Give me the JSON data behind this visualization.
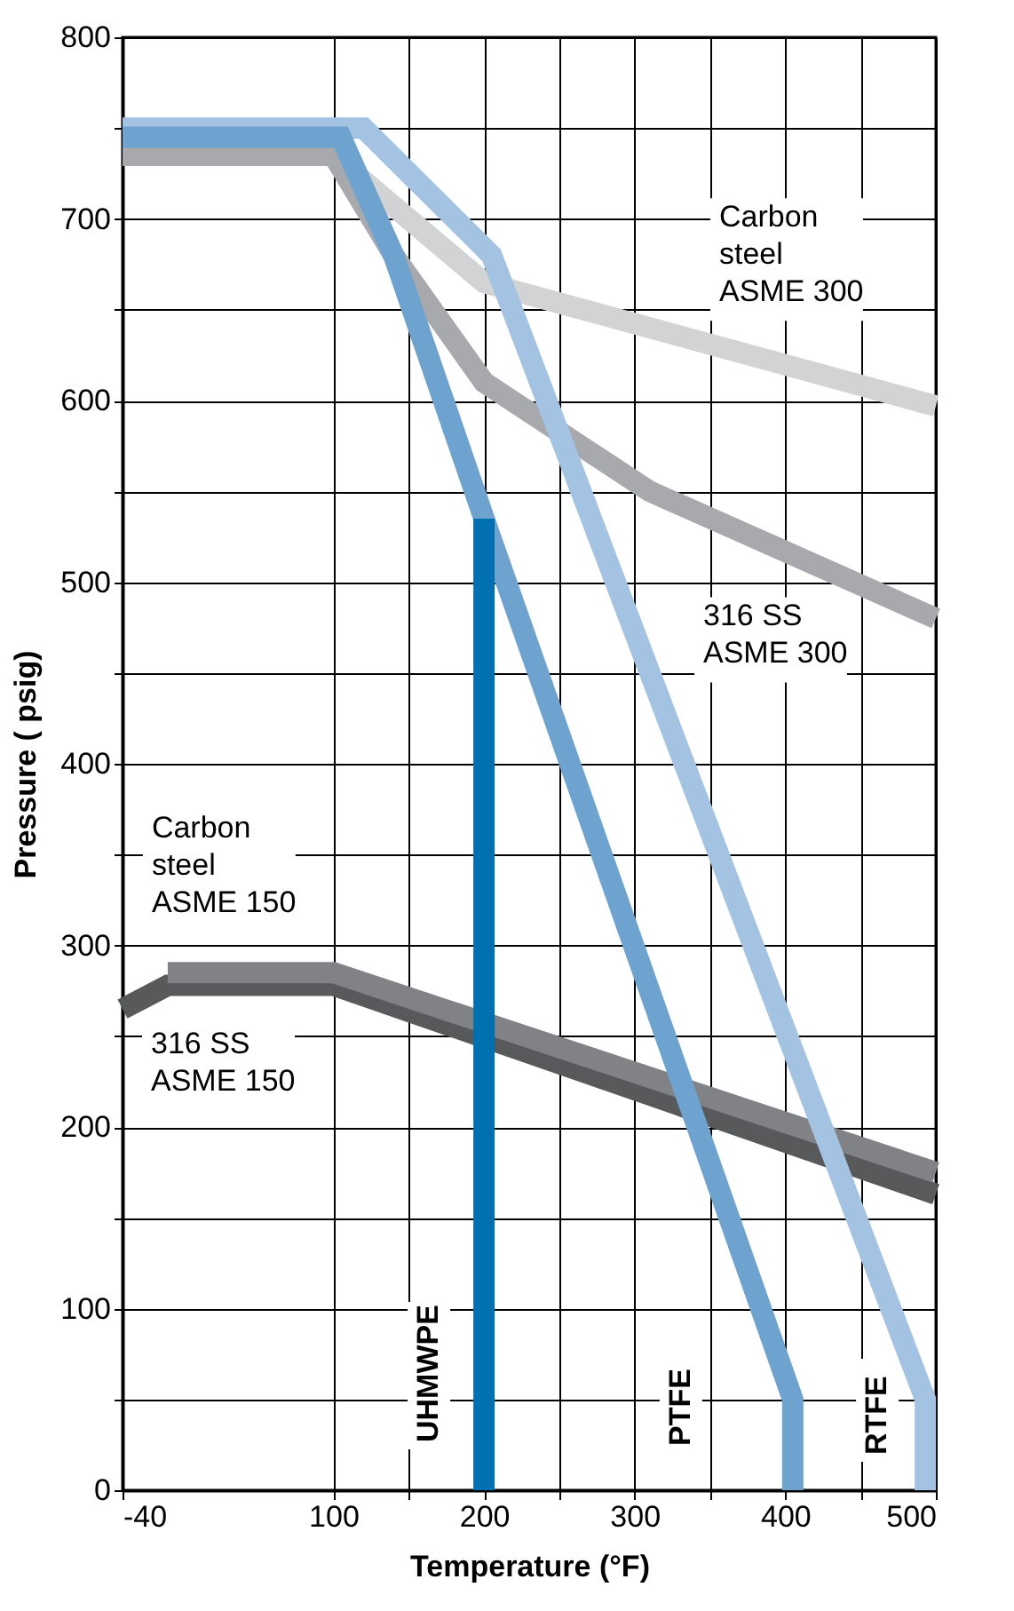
{
  "chart_data": {
    "type": "line",
    "xlabel": "Temperature (°F)",
    "ylabel": "Pressure ( psig)",
    "xlim": [
      -40,
      500
    ],
    "ylim": [
      0,
      800
    ],
    "xticks": [
      -40,
      100,
      {
        "value": 150,
        "label": null
      },
      200,
      {
        "value": 250,
        "label": null
      },
      300,
      {
        "value": 350,
        "label": null
      },
      400,
      {
        "value": 450,
        "label": null
      },
      500
    ],
    "yticks": [
      0,
      {
        "value": 50,
        "label": null
      },
      100,
      {
        "value": 150,
        "label": null
      },
      200,
      {
        "value": 250,
        "label": null
      },
      300,
      {
        "value": 350,
        "label": null
      },
      400,
      {
        "value": 450,
        "label": null
      },
      500,
      {
        "value": 550,
        "label": null
      },
      600,
      {
        "value": 650,
        "label": null
      },
      700,
      {
        "value": 750,
        "label": null
      },
      800
    ],
    "grid": true,
    "legend": false,
    "marker": "none",
    "line_style": "solid",
    "series": [
      {
        "name": "Carbon\nsteel\nASME 300",
        "color": "#d1d3d4",
        "x": [
          100,
          200,
          500
        ],
        "values": [
          735,
          665,
          597
        ]
      },
      {
        "name": "316 SS\nASME 300",
        "color": "#a7a9ac",
        "x": [
          -40,
          100,
          140,
          200,
          310,
          500
        ],
        "values": [
          735,
          735,
          680,
          610,
          550,
          480
        ]
      },
      {
        "name": "316 SS\nASME 150",
        "color": "#58595b",
        "x": [
          -40,
          -10,
          100,
          500
        ],
        "values": [
          265,
          278,
          278,
          163
        ]
      },
      {
        "name": "Carbon\nsteel\nASME 150",
        "color": "#808285",
        "x": [
          -10,
          100,
          500
        ],
        "values": [
          285,
          285,
          175
        ]
      },
      {
        "name": "RTFE",
        "color": "#a4c2e1",
        "x": [
          -40,
          120,
          205,
          493,
          493
        ],
        "values": [
          750,
          750,
          680,
          50,
          0
        ]
      },
      {
        "name": "PTFE",
        "color": "#6fa3cf",
        "x": [
          -40,
          105,
          140,
          200,
          405,
          405
        ],
        "values": [
          745,
          745,
          680,
          535,
          50,
          0
        ]
      },
      {
        "name": "UHMWPE",
        "color": "#0070b0",
        "x": [
          200,
          200
        ],
        "values": [
          0,
          535
        ]
      }
    ]
  }
}
